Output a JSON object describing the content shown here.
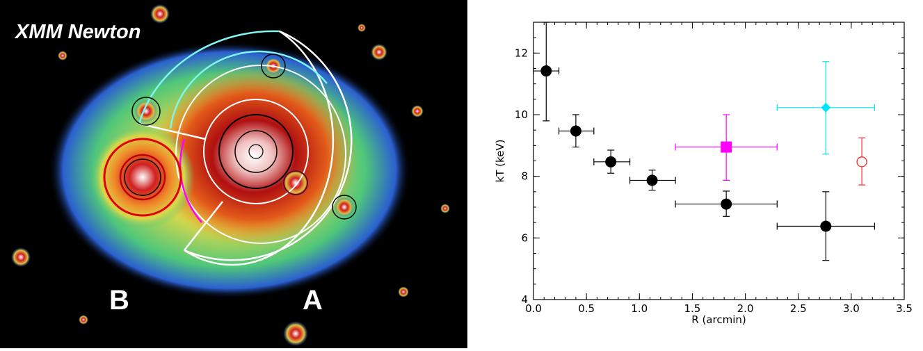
{
  "image_panel": {
    "title": "XMM Newton",
    "label_b": "B",
    "label_a": "A"
  },
  "chart_data": {
    "type": "scatter",
    "xlabel": "R (arcmin)",
    "ylabel": "kT (keV)",
    "xlim": [
      0.0,
      3.5
    ],
    "ylim": [
      4,
      13
    ],
    "xticks": [
      "0.0",
      "0.5",
      "1.0",
      "1.5",
      "2.0",
      "2.5",
      "3.0",
      "3.5"
    ],
    "yticks": [
      "4",
      "6",
      "8",
      "10",
      "12"
    ],
    "grid": false,
    "series": [
      {
        "color": "#000000",
        "marker": "filled-circle",
        "points": [
          {
            "x": 0.12,
            "y": 11.42,
            "xerr": [
              0.0,
              0.24
            ],
            "yerr": [
              9.8,
              13.0
            ]
          },
          {
            "x": 0.4,
            "y": 9.47,
            "xerr": [
              0.24,
              0.57
            ],
            "yerr": [
              8.95,
              10.0
            ]
          },
          {
            "x": 0.73,
            "y": 8.47,
            "xerr": [
              0.57,
              0.91
            ],
            "yerr": [
              8.1,
              8.85
            ]
          },
          {
            "x": 1.12,
            "y": 7.87,
            "xerr": [
              0.91,
              1.34
            ],
            "yerr": [
              7.55,
              8.2
            ]
          },
          {
            "x": 1.82,
            "y": 7.1,
            "xerr": [
              1.34,
              2.3
            ],
            "yerr": [
              6.7,
              7.52
            ]
          },
          {
            "x": 2.76,
            "y": 6.38,
            "xerr": [
              2.3,
              3.22
            ],
            "yerr": [
              5.27,
              7.5
            ]
          }
        ]
      },
      {
        "color": "#ff00ff",
        "marker": "filled-square",
        "points": [
          {
            "x": 1.82,
            "y": 8.95,
            "xerr": [
              1.34,
              2.3
            ],
            "yerr": [
              7.87,
              10.0
            ]
          }
        ]
      },
      {
        "color": "#00e5ff",
        "marker": "filled-diamond",
        "points": [
          {
            "x": 2.76,
            "y": 10.23,
            "xerr": [
              2.3,
              3.22
            ],
            "yerr": [
              8.72,
              11.72
            ]
          }
        ]
      },
      {
        "color": "#ff2a2a",
        "marker": "open-circle",
        "points": [
          {
            "x": 3.1,
            "y": 8.47,
            "xerr": null,
            "yerr": [
              7.72,
              9.25
            ]
          }
        ]
      }
    ]
  }
}
